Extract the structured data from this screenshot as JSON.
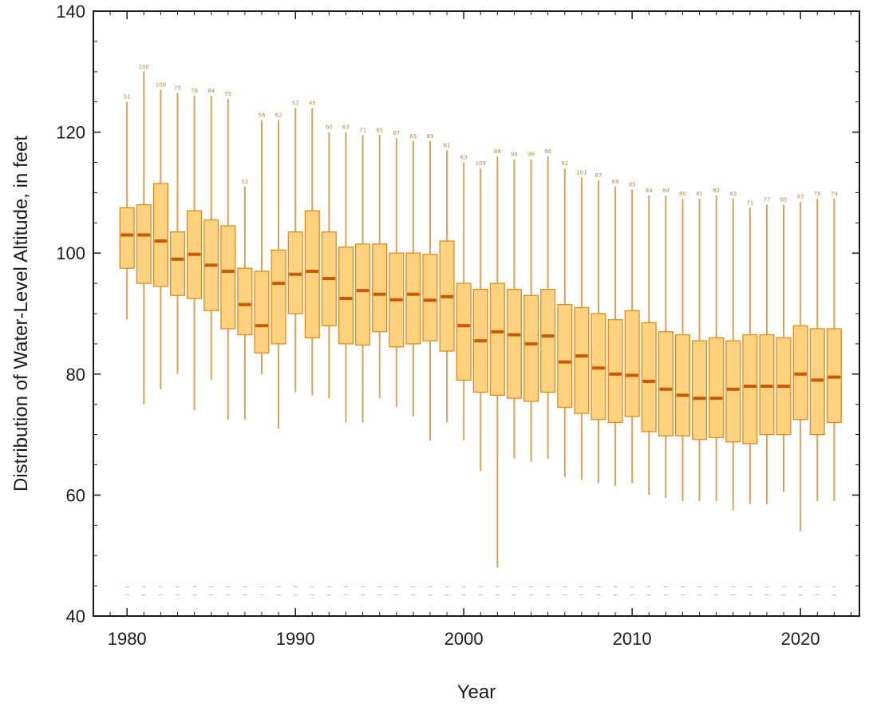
{
  "chart_data": {
    "type": "boxplot",
    "title": "",
    "xlabel": "Year",
    "ylabel": "Distribution of Water-Level Altitude, in feet",
    "xlim": [
      1978,
      2023.5
    ],
    "ylim": [
      40,
      140
    ],
    "x_ticks": [
      1980,
      1990,
      2000,
      2010,
      2020
    ],
    "y_ticks": [
      40,
      60,
      80,
      100,
      120,
      140
    ],
    "colors": {
      "box_fill": "#ffd27f",
      "box_stroke": "#e08a1e",
      "median": "#c85a00",
      "whisker": "#d9a257",
      "count_text": "#b88a4a",
      "bottom_text": "#c0405a",
      "axis": "#1a1a1a"
    },
    "boxes": [
      {
        "year": 1980,
        "min": 89,
        "q1": 97.5,
        "median": 103,
        "q3": 107.5,
        "max": 125,
        "count": "51"
      },
      {
        "year": 1981,
        "min": 75,
        "q1": 95,
        "median": 103,
        "q3": 108,
        "max": 130,
        "count": "100"
      },
      {
        "year": 1982,
        "min": 77.5,
        "q1": 94.5,
        "median": 102,
        "q3": 111.5,
        "max": 127,
        "count": "108"
      },
      {
        "year": 1983,
        "min": 80,
        "q1": 93,
        "median": 99,
        "q3": 103.5,
        "max": 126.5,
        "count": "75"
      },
      {
        "year": 1984,
        "min": 74,
        "q1": 92.5,
        "median": 99.8,
        "q3": 107,
        "max": 126,
        "count": "76"
      },
      {
        "year": 1985,
        "min": 79,
        "q1": 90.5,
        "median": 98,
        "q3": 105.5,
        "max": 126,
        "count": "64"
      },
      {
        "year": 1986,
        "min": 72.5,
        "q1": 87.5,
        "median": 97,
        "q3": 104.5,
        "max": 125.5,
        "count": "75"
      },
      {
        "year": 1987,
        "min": 72.5,
        "q1": 86.5,
        "median": 91.5,
        "q3": 97.5,
        "max": 111,
        "count": "52"
      },
      {
        "year": 1988,
        "min": 80,
        "q1": 83.5,
        "median": 88,
        "q3": 97,
        "max": 122,
        "count": "56"
      },
      {
        "year": 1989,
        "min": 71,
        "q1": 85,
        "median": 95,
        "q3": 100.5,
        "max": 122,
        "count": "62"
      },
      {
        "year": 1990,
        "min": 77,
        "q1": 90,
        "median": 96.5,
        "q3": 103.5,
        "max": 124,
        "count": "57"
      },
      {
        "year": 1991,
        "min": 76.5,
        "q1": 86,
        "median": 97,
        "q3": 107,
        "max": 124,
        "count": "45"
      },
      {
        "year": 1992,
        "min": 76,
        "q1": 88,
        "median": 95.8,
        "q3": 103.5,
        "max": 120,
        "count": "60"
      },
      {
        "year": 1993,
        "min": 72,
        "q1": 85,
        "median": 92.5,
        "q3": 101,
        "max": 120,
        "count": "63"
      },
      {
        "year": 1994,
        "min": 72,
        "q1": 84.8,
        "median": 93.8,
        "q3": 101.5,
        "max": 119.5,
        "count": "71"
      },
      {
        "year": 1995,
        "min": 76,
        "q1": 87,
        "median": 93.2,
        "q3": 101.5,
        "max": 119.5,
        "count": "65"
      },
      {
        "year": 1996,
        "min": 74.5,
        "q1": 84.5,
        "median": 92.3,
        "q3": 100,
        "max": 119,
        "count": "67"
      },
      {
        "year": 1997,
        "min": 73,
        "q1": 85,
        "median": 93.2,
        "q3": 100,
        "max": 118.5,
        "count": "65"
      },
      {
        "year": 1998,
        "min": 69,
        "q1": 85.5,
        "median": 92.2,
        "q3": 99.8,
        "max": 118.5,
        "count": "69"
      },
      {
        "year": 1999,
        "min": 72,
        "q1": 83.8,
        "median": 92.8,
        "q3": 102,
        "max": 117,
        "count": "61"
      },
      {
        "year": 2000,
        "min": 69,
        "q1": 79,
        "median": 88,
        "q3": 95,
        "max": 115,
        "count": "63"
      },
      {
        "year": 2001,
        "min": 64,
        "q1": 77,
        "median": 85.5,
        "q3": 94,
        "max": 114,
        "count": "109"
      },
      {
        "year": 2002,
        "min": 48,
        "q1": 76.5,
        "median": 87,
        "q3": 95,
        "max": 116,
        "count": "88"
      },
      {
        "year": 2003,
        "min": 66,
        "q1": 76,
        "median": 86.5,
        "q3": 94,
        "max": 115.5,
        "count": "98"
      },
      {
        "year": 2004,
        "min": 65.5,
        "q1": 75.5,
        "median": 85,
        "q3": 93,
        "max": 115.5,
        "count": "96"
      },
      {
        "year": 2005,
        "min": 66,
        "q1": 77,
        "median": 86.3,
        "q3": 94,
        "max": 116,
        "count": "86"
      },
      {
        "year": 2006,
        "min": 63,
        "q1": 74.5,
        "median": 82,
        "q3": 91.5,
        "max": 114,
        "count": "92"
      },
      {
        "year": 2007,
        "min": 62.5,
        "q1": 73.5,
        "median": 83,
        "q3": 91,
        "max": 112.5,
        "count": "101"
      },
      {
        "year": 2008,
        "min": 62,
        "q1": 72.5,
        "median": 81,
        "q3": 90,
        "max": 112,
        "count": "87"
      },
      {
        "year": 2009,
        "min": 61.5,
        "q1": 72,
        "median": 80,
        "q3": 89,
        "max": 111,
        "count": "89"
      },
      {
        "year": 2010,
        "min": 62,
        "q1": 73,
        "median": 79.8,
        "q3": 90.5,
        "max": 110.5,
        "count": "85"
      },
      {
        "year": 2011,
        "min": 60,
        "q1": 70.5,
        "median": 78.8,
        "q3": 88.5,
        "max": 109.5,
        "count": "84"
      },
      {
        "year": 2012,
        "min": 59.5,
        "q1": 69.8,
        "median": 77.5,
        "q3": 87,
        "max": 109.5,
        "count": "84"
      },
      {
        "year": 2013,
        "min": 59,
        "q1": 69.8,
        "median": 76.5,
        "q3": 86.5,
        "max": 109,
        "count": "80"
      },
      {
        "year": 2014,
        "min": 59,
        "q1": 69.2,
        "median": 76,
        "q3": 85.5,
        "max": 109,
        "count": "81"
      },
      {
        "year": 2015,
        "min": 59,
        "q1": 69.5,
        "median": 76,
        "q3": 86,
        "max": 109.5,
        "count": "82"
      },
      {
        "year": 2016,
        "min": 57.5,
        "q1": 68.8,
        "median": 77.5,
        "q3": 85.5,
        "max": 109,
        "count": "83"
      },
      {
        "year": 2017,
        "min": 58.5,
        "q1": 68.5,
        "median": 78,
        "q3": 86.5,
        "max": 107.5,
        "count": "71"
      },
      {
        "year": 2018,
        "min": 58.5,
        "q1": 70,
        "median": 78,
        "q3": 86.5,
        "max": 108,
        "count": "77"
      },
      {
        "year": 2019,
        "min": 60.5,
        "q1": 70,
        "median": 78,
        "q3": 86,
        "max": 108,
        "count": "85"
      },
      {
        "year": 2020,
        "min": 54,
        "q1": 72.5,
        "median": 80,
        "q3": 88,
        "max": 108.5,
        "count": "87"
      },
      {
        "year": 2021,
        "min": 59,
        "q1": 70,
        "median": 79,
        "q3": 87.5,
        "max": 109,
        "count": "76"
      },
      {
        "year": 2022,
        "min": 59,
        "q1": 72,
        "median": 79.5,
        "q3": 87.5,
        "max": 109,
        "count": "74"
      }
    ]
  }
}
